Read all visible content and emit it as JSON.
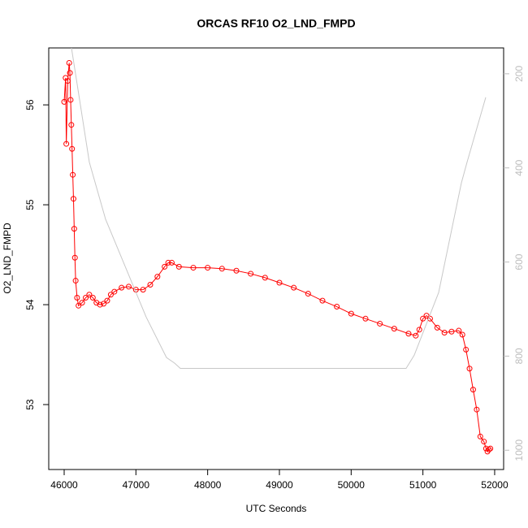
{
  "chart_data": {
    "type": "line",
    "title": "ORCAS RF10 O2_LND_FMPD",
    "x_label": "UTC Seconds",
    "y_label": "O2_LND_FMPD",
    "xlim": [
      45785,
      52125
    ],
    "xticks": [
      46000,
      47000,
      48000,
      49000,
      50000,
      51000,
      52000
    ],
    "ylim": [
      52.35,
      56.57
    ],
    "yticks": [
      53,
      54,
      55,
      56
    ],
    "y2lim": [
      1041,
      145
    ],
    "y2ticks": [
      200,
      400,
      600,
      800,
      1000
    ],
    "series": [
      {
        "color": "#ff0000",
        "marker": "circle",
        "x": [
          46000,
          46020,
          46030,
          46050,
          46070,
          46080,
          46090,
          46100,
          46110,
          46120,
          46130,
          46140,
          46150,
          46160,
          46180,
          46200,
          46250,
          46300,
          46350,
          46400,
          46450,
          46500,
          46550,
          46600,
          46650,
          46700,
          46800,
          46900,
          47000,
          47100,
          47200,
          47300,
          47400,
          47450,
          47500,
          47600,
          47800,
          48000,
          48200,
          48400,
          48600,
          48800,
          49000,
          49200,
          49400,
          49600,
          49800,
          50000,
          50200,
          50400,
          50600,
          50800,
          50900,
          50950,
          51000,
          51050,
          51100,
          51200,
          51300,
          51400,
          51500,
          51550,
          51600,
          51650,
          51700,
          51750,
          51800,
          51850,
          51880,
          51900,
          51920,
          51940
        ],
        "values": [
          56.03,
          56.27,
          55.61,
          56.24,
          56.42,
          56.32,
          56.05,
          55.8,
          55.56,
          55.3,
          55.06,
          54.76,
          54.47,
          54.24,
          54.07,
          53.99,
          54.02,
          54.07,
          54.1,
          54.07,
          54.02,
          54.0,
          54.01,
          54.04,
          54.1,
          54.13,
          54.17,
          54.18,
          54.15,
          54.15,
          54.2,
          54.28,
          54.38,
          54.42,
          54.42,
          54.38,
          54.37,
          54.37,
          54.36,
          54.34,
          54.31,
          54.27,
          54.22,
          54.17,
          54.11,
          54.04,
          53.98,
          53.91,
          53.86,
          53.81,
          53.76,
          53.71,
          53.69,
          53.75,
          53.86,
          53.89,
          53.86,
          53.77,
          53.72,
          53.73,
          53.74,
          53.7,
          53.55,
          53.36,
          53.15,
          52.95,
          52.68,
          52.63,
          52.56,
          52.53,
          52.55,
          52.56
        ]
      },
      {
        "color": "#c8c8c8",
        "axis": "y2",
        "x": [
          46102,
          46351,
          46577,
          46860,
          47143,
          47426,
          47540,
          47619,
          50766,
          50879,
          51219,
          51536,
          51615,
          51876
        ],
        "values": [
          145,
          388,
          509,
          613,
          717,
          803,
          815,
          826,
          826,
          798,
          665,
          432,
          388,
          250
        ]
      }
    ]
  }
}
